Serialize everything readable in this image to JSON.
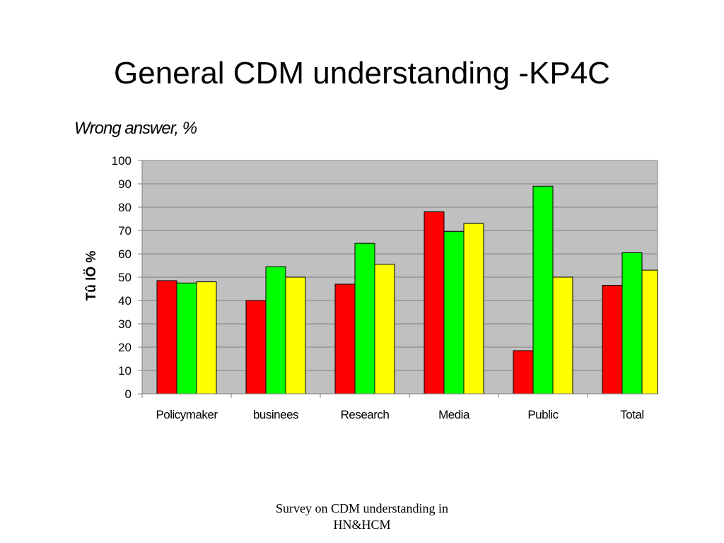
{
  "slide": {
    "title": "General CDM understanding -KP4C",
    "footer_line1": "Survey on CDM understanding in",
    "footer_line2": "HN&HCM"
  },
  "chart_data": {
    "type": "bar",
    "title": "",
    "subtitle": "Wrong answer, %",
    "xlabel": "",
    "ylabel": "Tû lÖ %",
    "ylim": [
      0,
      100
    ],
    "yticks": [
      0,
      10,
      20,
      30,
      40,
      50,
      60,
      70,
      80,
      90,
      100
    ],
    "grid": true,
    "legend": "none",
    "plot_background": "#c0c0c0",
    "categories": [
      "Policymaker",
      "businees",
      "Research",
      "Media",
      "Public",
      "Total"
    ],
    "series": [
      {
        "color": "#ff0000",
        "values": [
          48.5,
          40,
          47,
          78,
          18.5,
          46.5
        ]
      },
      {
        "color": "#00ff00",
        "values": [
          47.5,
          54.5,
          64.5,
          69.5,
          89,
          60.5
        ]
      },
      {
        "color": "#ffff00",
        "values": [
          48,
          50,
          55.5,
          73,
          50,
          53
        ]
      }
    ]
  }
}
